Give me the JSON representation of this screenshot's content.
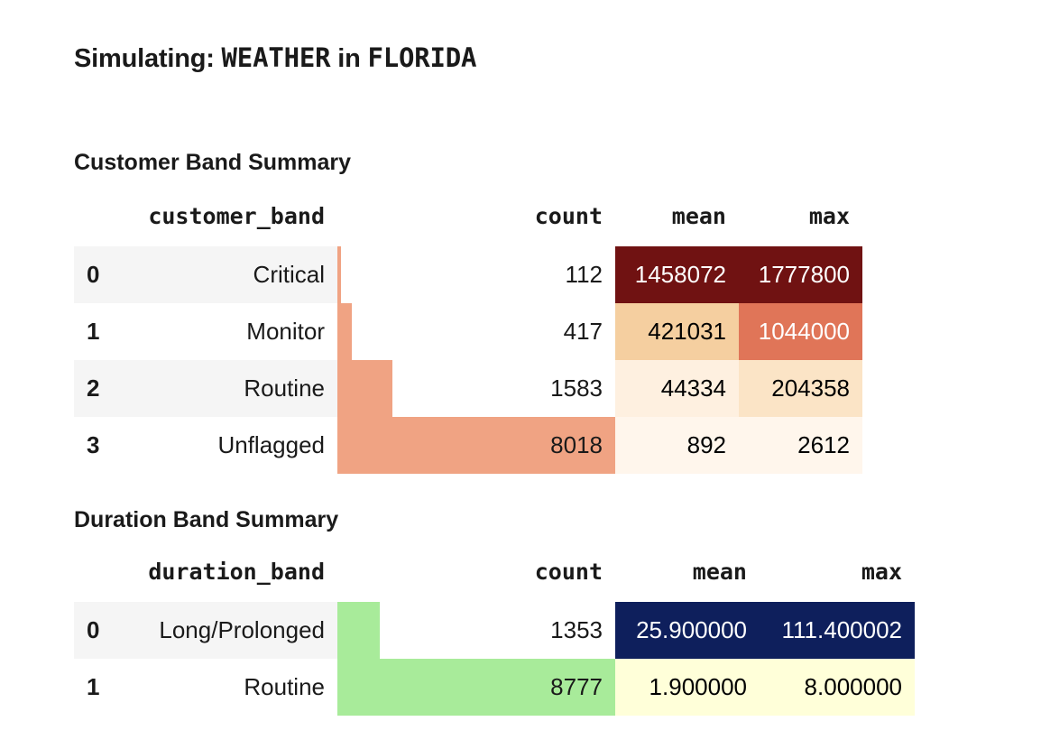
{
  "header": {
    "prefix": "Simulating: ",
    "event": "WEATHER",
    "connector": " in ",
    "state": "FLORIDA"
  },
  "customer_table": {
    "title": "Customer Band Summary",
    "columns": [
      "customer_band",
      "count",
      "mean",
      "max"
    ],
    "bar_color": "#f0a383",
    "rows": [
      {
        "index": "0",
        "label": "Critical",
        "count": "112",
        "count_fraction": 0.014,
        "mean": "1458072",
        "max": "1777800",
        "mean_bg": "#701212",
        "mean_fg": "#ffffff",
        "max_bg": "#701212",
        "max_fg": "#ffffff"
      },
      {
        "index": "1",
        "label": "Monitor",
        "count": "417",
        "count_fraction": 0.052,
        "mean": "421031",
        "max": "1044000",
        "mean_bg": "#f5cfa0",
        "mean_fg": "#000000",
        "max_bg": "#e07558",
        "max_fg": "#ffffff"
      },
      {
        "index": "2",
        "label": "Routine",
        "count": "1583",
        "count_fraction": 0.197,
        "mean": "44334",
        "max": "204358",
        "mean_bg": "#fef0e0",
        "mean_fg": "#000000",
        "max_bg": "#fbe4c6",
        "max_fg": "#000000"
      },
      {
        "index": "3",
        "label": "Unflagged",
        "count": "8018",
        "count_fraction": 1.0,
        "mean": "892",
        "max": "2612",
        "mean_bg": "#fff6ec",
        "mean_fg": "#000000",
        "max_bg": "#fff6ec",
        "max_fg": "#000000"
      }
    ]
  },
  "duration_table": {
    "title": "Duration Band Summary",
    "columns": [
      "duration_band",
      "count",
      "mean",
      "max"
    ],
    "bar_color": "#a8eb9a",
    "rows": [
      {
        "index": "0",
        "label": "Long/Prolonged",
        "count": "1353",
        "count_fraction": 0.154,
        "mean": "25.900000",
        "max": "111.400002",
        "mean_bg": "#0e1f5c",
        "mean_fg": "#ffffff",
        "max_bg": "#0e1f5c",
        "max_fg": "#ffffff"
      },
      {
        "index": "1",
        "label": "Routine",
        "count": "8777",
        "count_fraction": 1.0,
        "mean": "1.900000",
        "max": "8.000000",
        "mean_bg": "#ffffd9",
        "mean_fg": "#000000",
        "max_bg": "#ffffd9",
        "max_fg": "#000000"
      }
    ]
  }
}
